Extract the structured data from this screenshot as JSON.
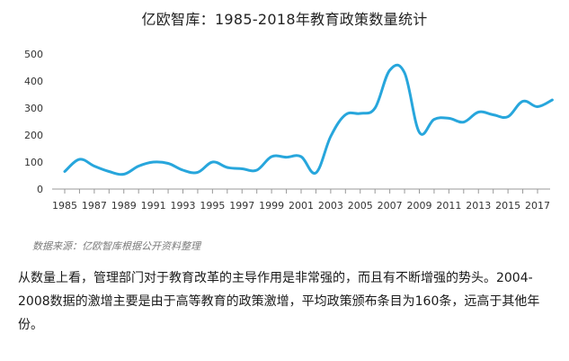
{
  "chart_data": {
    "type": "line",
    "title": "亿欧智库：1985-2018年教育政策数量统计",
    "xlabel": "",
    "ylabel": "",
    "ylim": [
      0,
      500
    ],
    "yticks": [
      0,
      100,
      200,
      300,
      400,
      500
    ],
    "xtick_labels": [
      "1985",
      "1987",
      "1989",
      "1991",
      "1993",
      "1995",
      "1997",
      "1999",
      "2001",
      "2003",
      "2005",
      "2007",
      "2009",
      "2011",
      "2013",
      "2015",
      "2017"
    ],
    "grid": false,
    "legend": "none",
    "line_color": "#27a6dc",
    "series": [
      {
        "x": [
          1985,
          1986,
          1987,
          1988,
          1989,
          1990,
          1991,
          1992,
          1993,
          1994,
          1995,
          1996,
          1997,
          1998,
          1999,
          2000,
          2001,
          2002,
          2003,
          2004,
          2005,
          2006,
          2007,
          2008,
          2009,
          2010,
          2011,
          2012,
          2013,
          2014,
          2015,
          2016,
          2017,
          2018
        ],
        "values": [
          65,
          110,
          85,
          65,
          55,
          85,
          100,
          95,
          70,
          62,
          100,
          80,
          75,
          70,
          120,
          118,
          120,
          60,
          195,
          275,
          280,
          300,
          440,
          430,
          210,
          258,
          262,
          248,
          285,
          275,
          268,
          325,
          305,
          330
        ]
      }
    ]
  },
  "source_note": "数据来源：亿欧智库根据公开资料整理",
  "body_text": "从数量上看，管理部门对于教育改革的主导作用是非常强的，而且有不断增强的势头。2004-2008数据的激增主要是由于高等教育的政策激增，平均政策颁布条目为160条，远高于其他年份。"
}
